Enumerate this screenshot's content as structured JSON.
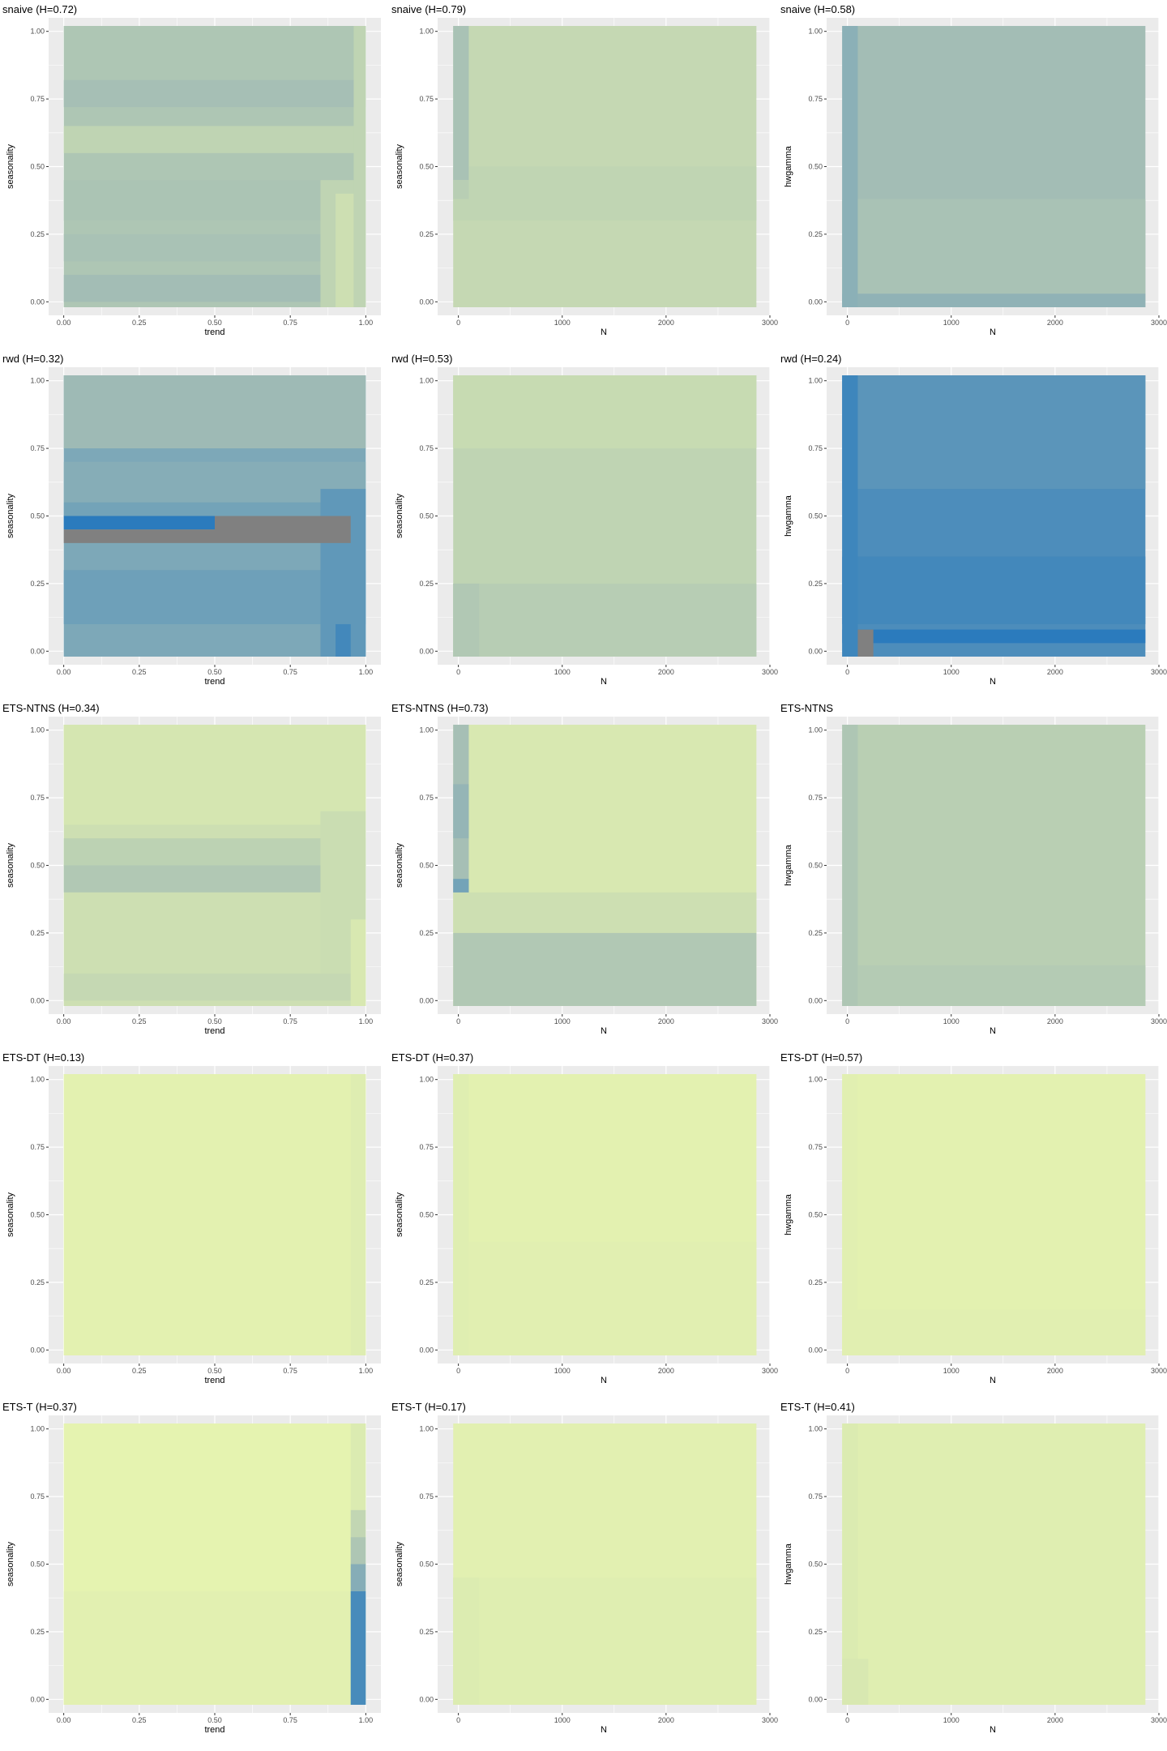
{
  "chart_data": [
    {
      "type": "heatmap",
      "title": "snaive (H=0.72)",
      "xlabel": "trend",
      "ylabel": "seasonality",
      "x_ticks": [
        "0.00",
        "0.25",
        "0.50",
        "0.75",
        "1.00"
      ],
      "y_ticks": [
        "0.00",
        "0.25",
        "0.50",
        "0.75",
        "1.00"
      ],
      "xlim": [
        -0.05,
        1.05
      ],
      "ylim": [
        -0.05,
        1.05
      ],
      "cell_x": [
        0.0,
        1.0
      ],
      "cell_y": [
        -0.02,
        1.02
      ],
      "base_level": 0.42,
      "bands": [
        {
          "from": 0.0,
          "to": 0.1,
          "level": 0.5
        },
        {
          "from": 0.15,
          "to": 0.25,
          "level": 0.46
        },
        {
          "from": 0.3,
          "to": 0.45,
          "level": 0.44
        },
        {
          "from": 0.55,
          "to": 0.65,
          "level": 0.3
        },
        {
          "from": 0.72,
          "to": 0.82,
          "level": 0.48
        }
      ],
      "patches": [
        {
          "x0": 0.85,
          "x1": 1.0,
          "y0": -0.02,
          "y1": 0.45,
          "level": 0.3
        },
        {
          "x0": 0.9,
          "x1": 0.96,
          "y0": -0.02,
          "y1": 0.4,
          "level": 0.2
        },
        {
          "x0": 0.96,
          "x1": 1.0,
          "y0": -0.02,
          "y1": 1.02,
          "level": 0.3
        }
      ]
    },
    {
      "type": "heatmap",
      "title": "snaive (H=0.79)",
      "xlabel": "N",
      "ylabel": "seasonality",
      "x_ticks": [
        "0",
        "1000",
        "2000",
        "3000"
      ],
      "y_ticks": [
        "0.00",
        "0.25",
        "0.50",
        "0.75",
        "1.00"
      ],
      "xlim": [
        -200,
        3000
      ],
      "ylim": [
        -0.05,
        1.05
      ],
      "cell_x": [
        -50,
        2870
      ],
      "cell_y": [
        -0.02,
        1.02
      ],
      "base_level": 0.26,
      "bands": [
        {
          "from": 0.3,
          "to": 0.5,
          "level": 0.29
        }
      ],
      "patches": [
        {
          "x0": -50,
          "x1": 100,
          "y0": 0.45,
          "y1": 1.02,
          "level": 0.46
        },
        {
          "x0": -50,
          "x1": 100,
          "y0": 0.38,
          "y1": 0.45,
          "level": 0.35
        }
      ]
    },
    {
      "type": "heatmap",
      "title": "snaive (H=0.58)",
      "xlabel": "N",
      "ylabel": "hwgamma",
      "x_ticks": [
        "0",
        "1000",
        "2000",
        "3000"
      ],
      "y_ticks": [
        "0.00",
        "0.25",
        "0.50",
        "0.75",
        "1.00"
      ],
      "xlim": [
        -200,
        3000
      ],
      "ylim": [
        -0.05,
        1.05
      ],
      "cell_x": [
        -50,
        2870
      ],
      "cell_y": [
        -0.02,
        1.02
      ],
      "base_level": 0.5,
      "bands": [
        {
          "from": 0.0,
          "to": 0.38,
          "level": 0.46
        },
        {
          "from": -0.02,
          "to": 0.03,
          "level": 0.58
        }
      ],
      "patches": [
        {
          "x0": -50,
          "x1": 100,
          "y0": -0.02,
          "y1": 1.02,
          "level": 0.6
        }
      ]
    },
    {
      "type": "heatmap",
      "title": "rwd (H=0.32)",
      "xlabel": "trend",
      "ylabel": "seasonality",
      "x_ticks": [
        "0.00",
        "0.25",
        "0.50",
        "0.75",
        "1.00"
      ],
      "y_ticks": [
        "0.00",
        "0.25",
        "0.50",
        "0.75",
        "1.00"
      ],
      "xlim": [
        -0.05,
        1.05
      ],
      "ylim": [
        -0.05,
        1.05
      ],
      "cell_x": [
        0.0,
        1.0
      ],
      "cell_y": [
        -0.02,
        1.02
      ],
      "base_level": 0.66,
      "bands": [
        {
          "from": 0.75,
          "to": 1.02,
          "level": 0.52
        },
        {
          "from": 0.55,
          "to": 0.7,
          "level": 0.62
        },
        {
          "from": 0.5,
          "to": 0.55,
          "level": 0.7
        },
        {
          "from": 0.1,
          "to": 0.3,
          "level": 0.72
        }
      ],
      "patches": [
        {
          "x0": 0.85,
          "x1": 1.0,
          "y0": -0.02,
          "y1": 0.6,
          "level": 0.78
        },
        {
          "x0": 0.9,
          "x1": 0.95,
          "y0": -0.02,
          "y1": 0.1,
          "level": 0.9
        }
      ],
      "fixed_cells": [
        {
          "x0": 0.0,
          "x1": 0.5,
          "y0": 0.45,
          "y1": 0.5,
          "color": "#2b7bbd"
        },
        {
          "x0": 0.0,
          "x1": 0.5,
          "y0": 0.4,
          "y1": 0.45,
          "color": "#808080"
        },
        {
          "x0": 0.5,
          "x1": 0.95,
          "y0": 0.4,
          "y1": 0.5,
          "color": "#808080"
        }
      ]
    },
    {
      "type": "heatmap",
      "title": "rwd (H=0.53)",
      "xlabel": "N",
      "ylabel": "seasonality",
      "x_ticks": [
        "0",
        "1000",
        "2000",
        "3000"
      ],
      "y_ticks": [
        "0.00",
        "0.25",
        "0.50",
        "0.75",
        "1.00"
      ],
      "xlim": [
        -200,
        3000
      ],
      "ylim": [
        -0.05,
        1.05
      ],
      "cell_x": [
        -50,
        2870
      ],
      "cell_y": [
        -0.02,
        1.02
      ],
      "base_level": 0.3,
      "bands": [
        {
          "from": 0.75,
          "to": 1.02,
          "level": 0.24
        },
        {
          "from": -0.02,
          "to": 0.25,
          "level": 0.36
        }
      ],
      "patches": [
        {
          "x0": -50,
          "x1": 200,
          "y0": -0.02,
          "y1": 0.25,
          "level": 0.4
        }
      ]
    },
    {
      "type": "heatmap",
      "title": "rwd (H=0.24)",
      "xlabel": "N",
      "ylabel": "hwgamma",
      "x_ticks": [
        "0",
        "1000",
        "2000",
        "3000"
      ],
      "y_ticks": [
        "0.00",
        "0.25",
        "0.50",
        "0.75",
        "1.00"
      ],
      "xlim": [
        -200,
        3000
      ],
      "ylim": [
        -0.05,
        1.05
      ],
      "cell_x": [
        -50,
        2870
      ],
      "cell_y": [
        -0.02,
        1.02
      ],
      "base_level": 0.86,
      "bands": [
        {
          "from": 0.6,
          "to": 1.02,
          "level": 0.8
        },
        {
          "from": 0.1,
          "to": 0.35,
          "level": 0.9
        },
        {
          "from": 0.03,
          "to": 0.08,
          "level": 1.0
        }
      ],
      "patches": [
        {
          "x0": -50,
          "x1": 100,
          "y0": -0.02,
          "y1": 1.02,
          "level": 0.92
        }
      ],
      "fixed_cells": [
        {
          "x0": 100,
          "x1": 250,
          "y0": -0.02,
          "y1": 0.08,
          "color": "#808080"
        }
      ]
    },
    {
      "type": "heatmap",
      "title": "ETS-NTNS (H=0.34)",
      "xlabel": "trend",
      "ylabel": "seasonality",
      "x_ticks": [
        "0.00",
        "0.25",
        "0.50",
        "0.75",
        "1.00"
      ],
      "y_ticks": [
        "0.00",
        "0.25",
        "0.50",
        "0.75",
        "1.00"
      ],
      "xlim": [
        -0.05,
        1.05
      ],
      "ylim": [
        -0.05,
        1.05
      ],
      "cell_x": [
        0.0,
        1.0
      ],
      "cell_y": [
        -0.02,
        1.02
      ],
      "base_level": 0.2,
      "bands": [
        {
          "from": 0.65,
          "to": 1.02,
          "level": 0.14
        },
        {
          "from": 0.4,
          "to": 0.5,
          "level": 0.4
        },
        {
          "from": 0.5,
          "to": 0.6,
          "level": 0.32
        },
        {
          "from": 0.0,
          "to": 0.1,
          "level": 0.26
        }
      ],
      "patches": [
        {
          "x0": 0.85,
          "x1": 1.0,
          "y0": 0.1,
          "y1": 0.7,
          "level": 0.22
        },
        {
          "x0": 0.95,
          "x1": 1.0,
          "y0": -0.02,
          "y1": 0.3,
          "level": 0.12
        }
      ]
    },
    {
      "type": "heatmap",
      "title": "ETS-NTNS (H=0.73)",
      "xlabel": "N",
      "ylabel": "seasonality",
      "x_ticks": [
        "0",
        "1000",
        "2000",
        "3000"
      ],
      "y_ticks": [
        "0.00",
        "0.25",
        "0.50",
        "0.75",
        "1.00"
      ],
      "xlim": [
        -200,
        3000
      ],
      "ylim": [
        -0.05,
        1.05
      ],
      "cell_x": [
        -50,
        2870
      ],
      "cell_y": [
        -0.02,
        1.02
      ],
      "base_level": 0.12,
      "bands": [
        {
          "from": 0.25,
          "to": 0.4,
          "level": 0.2
        },
        {
          "from": -0.02,
          "to": 0.25,
          "level": 0.4
        }
      ],
      "patches": [
        {
          "x0": -50,
          "x1": 100,
          "y0": 0.4,
          "y1": 1.02,
          "level": 0.48
        },
        {
          "x0": -50,
          "x1": 100,
          "y0": 0.6,
          "y1": 0.8,
          "level": 0.56
        },
        {
          "x0": -50,
          "x1": 100,
          "y0": 0.4,
          "y1": 0.45,
          "level": 0.7
        }
      ]
    },
    {
      "type": "heatmap",
      "title": "ETS-NTNS",
      "xlabel": "N",
      "ylabel": "hwgamma",
      "x_ticks": [
        "0",
        "1000",
        "2000",
        "3000"
      ],
      "y_ticks": [
        "0.00",
        "0.25",
        "0.50",
        "0.75",
        "1.00"
      ],
      "xlim": [
        -200,
        3000
      ],
      "ylim": [
        -0.05,
        1.05
      ],
      "cell_x": [
        -50,
        2870
      ],
      "cell_y": [
        -0.02,
        1.02
      ],
      "base_level": 0.34,
      "bands": [
        {
          "from": -0.02,
          "to": 0.13,
          "level": 0.38
        }
      ],
      "patches": [
        {
          "x0": -50,
          "x1": 100,
          "y0": -0.02,
          "y1": 1.02,
          "level": 0.42
        }
      ]
    },
    {
      "type": "heatmap",
      "title": "ETS-DT (H=0.13)",
      "xlabel": "trend",
      "ylabel": "seasonality",
      "x_ticks": [
        "0.00",
        "0.25",
        "0.50",
        "0.75",
        "1.00"
      ],
      "y_ticks": [
        "0.00",
        "0.25",
        "0.50",
        "0.75",
        "1.00"
      ],
      "xlim": [
        -0.05,
        1.05
      ],
      "ylim": [
        -0.05,
        1.05
      ],
      "cell_x": [
        0.0,
        1.0
      ],
      "cell_y": [
        -0.02,
        1.02
      ],
      "base_level": 0.04,
      "bands": [],
      "patches": [
        {
          "x0": 0.95,
          "x1": 1.0,
          "y0": -0.02,
          "y1": 1.02,
          "level": 0.08
        }
      ]
    },
    {
      "type": "heatmap",
      "title": "ETS-DT (H=0.37)",
      "xlabel": "N",
      "ylabel": "seasonality",
      "x_ticks": [
        "0",
        "1000",
        "2000",
        "3000"
      ],
      "y_ticks": [
        "0.00",
        "0.25",
        "0.50",
        "0.75",
        "1.00"
      ],
      "xlim": [
        -200,
        3000
      ],
      "ylim": [
        -0.05,
        1.05
      ],
      "cell_x": [
        -50,
        2870
      ],
      "cell_y": [
        -0.02,
        1.02
      ],
      "base_level": 0.04,
      "bands": [
        {
          "from": -0.02,
          "to": 0.4,
          "level": 0.06
        }
      ],
      "patches": [
        {
          "x0": -50,
          "x1": 100,
          "y0": -0.02,
          "y1": 1.02,
          "level": 0.07
        }
      ]
    },
    {
      "type": "heatmap",
      "title": "ETS-DT (H=0.57)",
      "xlabel": "N",
      "ylabel": "hwgamma",
      "x_ticks": [
        "0",
        "1000",
        "2000",
        "3000"
      ],
      "y_ticks": [
        "0.00",
        "0.25",
        "0.50",
        "0.75",
        "1.00"
      ],
      "xlim": [
        -200,
        3000
      ],
      "ylim": [
        -0.05,
        1.05
      ],
      "cell_x": [
        -50,
        2870
      ],
      "cell_y": [
        -0.02,
        1.02
      ],
      "base_level": 0.04,
      "bands": [
        {
          "from": -0.02,
          "to": 0.15,
          "level": 0.06
        }
      ],
      "patches": [
        {
          "x0": -50,
          "x1": 100,
          "y0": -0.02,
          "y1": 1.02,
          "level": 0.06
        }
      ]
    },
    {
      "type": "heatmap",
      "title": "ETS-T (H=0.37)",
      "xlabel": "trend",
      "ylabel": "seasonality",
      "x_ticks": [
        "0.00",
        "0.25",
        "0.50",
        "0.75",
        "1.00"
      ],
      "y_ticks": [
        "0.00",
        "0.25",
        "0.50",
        "0.75",
        "1.00"
      ],
      "xlim": [
        -0.05,
        1.05
      ],
      "ylim": [
        -0.05,
        1.05
      ],
      "cell_x": [
        0.0,
        1.0
      ],
      "cell_y": [
        -0.02,
        1.02
      ],
      "base_level": 0.03,
      "bands": [
        {
          "from": -0.02,
          "to": 0.4,
          "level": 0.05
        }
      ],
      "patches": [
        {
          "x0": 0.95,
          "x1": 1.0,
          "y0": 0.7,
          "y1": 1.02,
          "level": 0.1
        },
        {
          "x0": 0.95,
          "x1": 1.0,
          "y0": 0.6,
          "y1": 0.7,
          "level": 0.28
        },
        {
          "x0": 0.95,
          "x1": 1.0,
          "y0": 0.5,
          "y1": 0.6,
          "level": 0.42
        },
        {
          "x0": 0.95,
          "x1": 1.0,
          "y0": 0.4,
          "y1": 0.5,
          "level": 0.62
        },
        {
          "x0": 0.95,
          "x1": 1.0,
          "y0": -0.02,
          "y1": 0.4,
          "level": 0.88
        }
      ]
    },
    {
      "type": "heatmap",
      "title": "ETS-T (H=0.17)",
      "xlabel": "N",
      "ylabel": "seasonality",
      "x_ticks": [
        "0",
        "1000",
        "2000",
        "3000"
      ],
      "y_ticks": [
        "0.00",
        "0.25",
        "0.50",
        "0.75",
        "1.00"
      ],
      "xlim": [
        -200,
        3000
      ],
      "ylim": [
        -0.05,
        1.05
      ],
      "cell_x": [
        -50,
        2870
      ],
      "cell_y": [
        -0.02,
        1.02
      ],
      "base_level": 0.05,
      "bands": [
        {
          "from": -0.02,
          "to": 0.45,
          "level": 0.07
        }
      ],
      "patches": [
        {
          "x0": -50,
          "x1": 200,
          "y0": -0.02,
          "y1": 0.45,
          "level": 0.09
        }
      ]
    },
    {
      "type": "heatmap",
      "title": "ETS-T (H=0.41)",
      "xlabel": "N",
      "ylabel": "hwgamma",
      "x_ticks": [
        "0",
        "1000",
        "2000",
        "3000"
      ],
      "y_ticks": [
        "0.00",
        "0.25",
        "0.50",
        "0.75",
        "1.00"
      ],
      "xlim": [
        -200,
        3000
      ],
      "ylim": [
        -0.05,
        1.05
      ],
      "cell_x": [
        -50,
        2870
      ],
      "cell_y": [
        -0.02,
        1.02
      ],
      "base_level": 0.07,
      "bands": [],
      "patches": [
        {
          "x0": -50,
          "x1": 100,
          "y0": -0.02,
          "y1": 1.02,
          "level": 0.1
        },
        {
          "x0": -50,
          "x1": 200,
          "y0": -0.02,
          "y1": 0.15,
          "level": 0.12
        }
      ]
    }
  ],
  "colors": {
    "palette_low": "#e9f6b0",
    "palette_mid": "#a3bdb5",
    "palette_high": "#2b7bbd",
    "na_color": "#808080",
    "panel_background": "#ebebeb",
    "grid_line": "#ffffff",
    "axis_text": "#4d4d4d"
  }
}
